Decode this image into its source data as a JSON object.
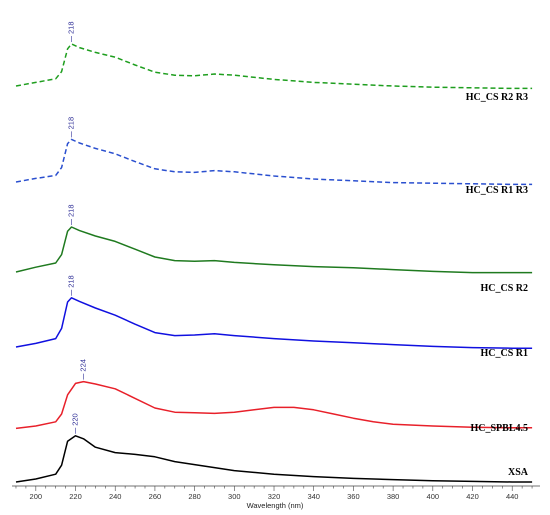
{
  "chart_data": {
    "type": "line",
    "title": "",
    "xlabel": "Wavelength (nm)",
    "ylabel": "",
    "xlim": [
      188,
      454
    ],
    "x_ticks": [
      "200",
      "220",
      "240",
      "260",
      "280",
      "300",
      "320",
      "340",
      "360",
      "380",
      "400",
      "420",
      "440"
    ],
    "y_axis": "stacked, offset spectra (no y scale shown)",
    "series": [
      {
        "name": "HC_CS R2 R3",
        "color": "#1e9e1e",
        "dash": "dashed",
        "peak": "218",
        "x": [
          190,
          200,
          210,
          213,
          216,
          218,
          222,
          230,
          240,
          250,
          260,
          270,
          280,
          290,
          300,
          320,
          340,
          360,
          380,
          400,
          420,
          440,
          450
        ],
        "y": [
          0.1,
          0.16,
          0.22,
          0.34,
          0.72,
          0.8,
          0.74,
          0.66,
          0.58,
          0.45,
          0.33,
          0.28,
          0.27,
          0.3,
          0.28,
          0.21,
          0.16,
          0.13,
          0.1,
          0.08,
          0.07,
          0.06,
          0.06
        ]
      },
      {
        "name": "HC_CS R1 R3",
        "color": "#2a4fcf",
        "dash": "dashed",
        "peak": "218",
        "x": [
          190,
          200,
          210,
          213,
          216,
          218,
          222,
          230,
          240,
          250,
          260,
          270,
          280,
          290,
          300,
          320,
          340,
          360,
          380,
          400,
          420,
          440,
          450
        ],
        "y": [
          0.1,
          0.16,
          0.21,
          0.34,
          0.74,
          0.81,
          0.75,
          0.66,
          0.57,
          0.44,
          0.32,
          0.27,
          0.26,
          0.29,
          0.27,
          0.2,
          0.15,
          0.12,
          0.09,
          0.08,
          0.07,
          0.06,
          0.06
        ]
      },
      {
        "name": "HC_CS R2",
        "color": "#1f7a1f",
        "dash": "solid",
        "peak": "218",
        "x": [
          190,
          200,
          210,
          213,
          216,
          218,
          222,
          230,
          240,
          250,
          260,
          270,
          280,
          290,
          300,
          320,
          340,
          360,
          380,
          400,
          420,
          440,
          450
        ],
        "y": [
          0.05,
          0.13,
          0.2,
          0.34,
          0.73,
          0.8,
          0.74,
          0.65,
          0.56,
          0.43,
          0.3,
          0.24,
          0.23,
          0.24,
          0.21,
          0.17,
          0.14,
          0.12,
          0.09,
          0.06,
          0.04,
          0.04,
          0.04
        ]
      },
      {
        "name": "HC_CS R1",
        "color": "#1010e0",
        "dash": "solid",
        "peak": "218",
        "x": [
          190,
          200,
          210,
          213,
          216,
          218,
          222,
          230,
          240,
          250,
          260,
          270,
          280,
          290,
          300,
          320,
          340,
          360,
          380,
          400,
          420,
          440,
          450
        ],
        "y": [
          0.05,
          0.11,
          0.19,
          0.36,
          0.8,
          0.87,
          0.81,
          0.7,
          0.58,
          0.43,
          0.29,
          0.24,
          0.25,
          0.27,
          0.24,
          0.19,
          0.15,
          0.12,
          0.09,
          0.06,
          0.04,
          0.03,
          0.03
        ]
      },
      {
        "name": "HC_SPBL4.5",
        "color": "#e8202a",
        "dash": "solid",
        "peak": "224",
        "x": [
          190,
          200,
          210,
          213,
          216,
          220,
          224,
          230,
          240,
          250,
          260,
          270,
          280,
          290,
          300,
          310,
          320,
          330,
          340,
          350,
          360,
          370,
          380,
          400,
          420,
          440,
          450
        ],
        "y": [
          0.06,
          0.1,
          0.17,
          0.3,
          0.62,
          0.81,
          0.84,
          0.8,
          0.72,
          0.56,
          0.4,
          0.33,
          0.32,
          0.31,
          0.33,
          0.37,
          0.41,
          0.41,
          0.37,
          0.3,
          0.23,
          0.17,
          0.13,
          0.1,
          0.08,
          0.07,
          0.07
        ]
      },
      {
        "name": "XSA",
        "color": "#000000",
        "dash": "solid",
        "peak": "220",
        "x": [
          190,
          200,
          210,
          213,
          216,
          220,
          224,
          230,
          240,
          250,
          260,
          270,
          280,
          290,
          300,
          320,
          340,
          360,
          380,
          400,
          420,
          440,
          450
        ],
        "y": [
          0.05,
          0.1,
          0.18,
          0.33,
          0.73,
          0.82,
          0.77,
          0.63,
          0.54,
          0.51,
          0.47,
          0.39,
          0.34,
          0.29,
          0.24,
          0.18,
          0.14,
          0.11,
          0.09,
          0.07,
          0.06,
          0.05,
          0.05
        ]
      }
    ]
  }
}
